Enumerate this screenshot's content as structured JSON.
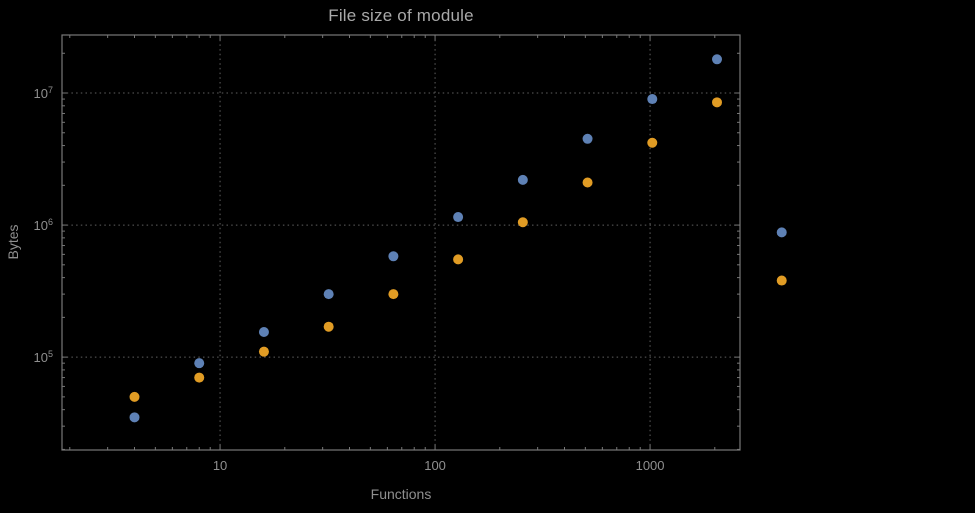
{
  "title": "File size of module",
  "colors": {
    "background": "#000000",
    "title_text": "#a9a9a9",
    "label_text": "#8f8f8f",
    "frame": "#787878",
    "grid": "#616161",
    "series_blue": "#5e81b5",
    "series_orange": "#e19c24"
  },
  "chart_data": {
    "type": "scatter",
    "title": "File size of module",
    "xlabel": "Functions",
    "ylabel": "Bytes",
    "x_scale": "log",
    "y_scale": "log",
    "grid": true,
    "legend": "none",
    "xlim": [
      1.84,
      2620
    ],
    "ylim": [
      19800,
      27500000
    ],
    "x_ticks": [
      10,
      100,
      1000
    ],
    "x_tick_labels": [
      "10",
      "100",
      "1000"
    ],
    "y_ticks": [
      100000,
      1000000,
      10000000
    ],
    "y_tick_labels": [
      "10^5",
      "10^6",
      "10^7"
    ],
    "series": [
      {
        "name": "series-blue",
        "color": "#5e81b5",
        "points": [
          [
            4,
            35000
          ],
          [
            8,
            90000
          ],
          [
            16,
            155000
          ],
          [
            32,
            300000
          ],
          [
            64,
            580000
          ],
          [
            128,
            1150000
          ],
          [
            256,
            2200000
          ],
          [
            512,
            4500000
          ],
          [
            1024,
            9000000
          ],
          [
            2048,
            18000000
          ],
          [
            4096,
            880000
          ]
        ]
      },
      {
        "name": "series-orange",
        "color": "#e19c24",
        "points": [
          [
            4,
            50000
          ],
          [
            8,
            70000
          ],
          [
            16,
            110000
          ],
          [
            32,
            170000
          ],
          [
            64,
            300000
          ],
          [
            128,
            550000
          ],
          [
            256,
            1050000
          ],
          [
            512,
            2100000
          ],
          [
            1024,
            4200000
          ],
          [
            2048,
            8500000
          ],
          [
            4096,
            380000
          ]
        ]
      }
    ]
  }
}
